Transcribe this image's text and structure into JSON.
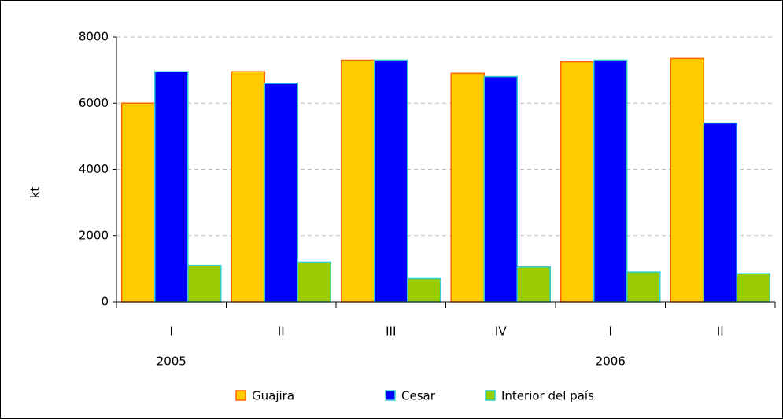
{
  "chart_data": {
    "type": "bar",
    "y_label": "kt",
    "categories": [
      "I",
      "II",
      "III",
      "IV",
      "I",
      "II"
    ],
    "year_labels": [
      "2005",
      null,
      null,
      null,
      "2006",
      null
    ],
    "series": [
      {
        "name": "Guajira",
        "color": "#ffcc00",
        "border": "#ff6600",
        "values": [
          6000,
          6950,
          7300,
          6900,
          7250,
          7350
        ]
      },
      {
        "name": "Cesar",
        "color": "#0000ff",
        "border": "#33cccc",
        "values": [
          6950,
          6600,
          7300,
          6800,
          7300,
          5400
        ]
      },
      {
        "name": "Interior del país",
        "color": "#99cc00",
        "border": "#33cccc",
        "values": [
          1100,
          1200,
          700,
          1050,
          900,
          850
        ]
      }
    ],
    "ylim": [
      0,
      8000
    ],
    "yticks": [
      0,
      2000,
      4000,
      6000,
      8000
    ],
    "grid": true
  }
}
